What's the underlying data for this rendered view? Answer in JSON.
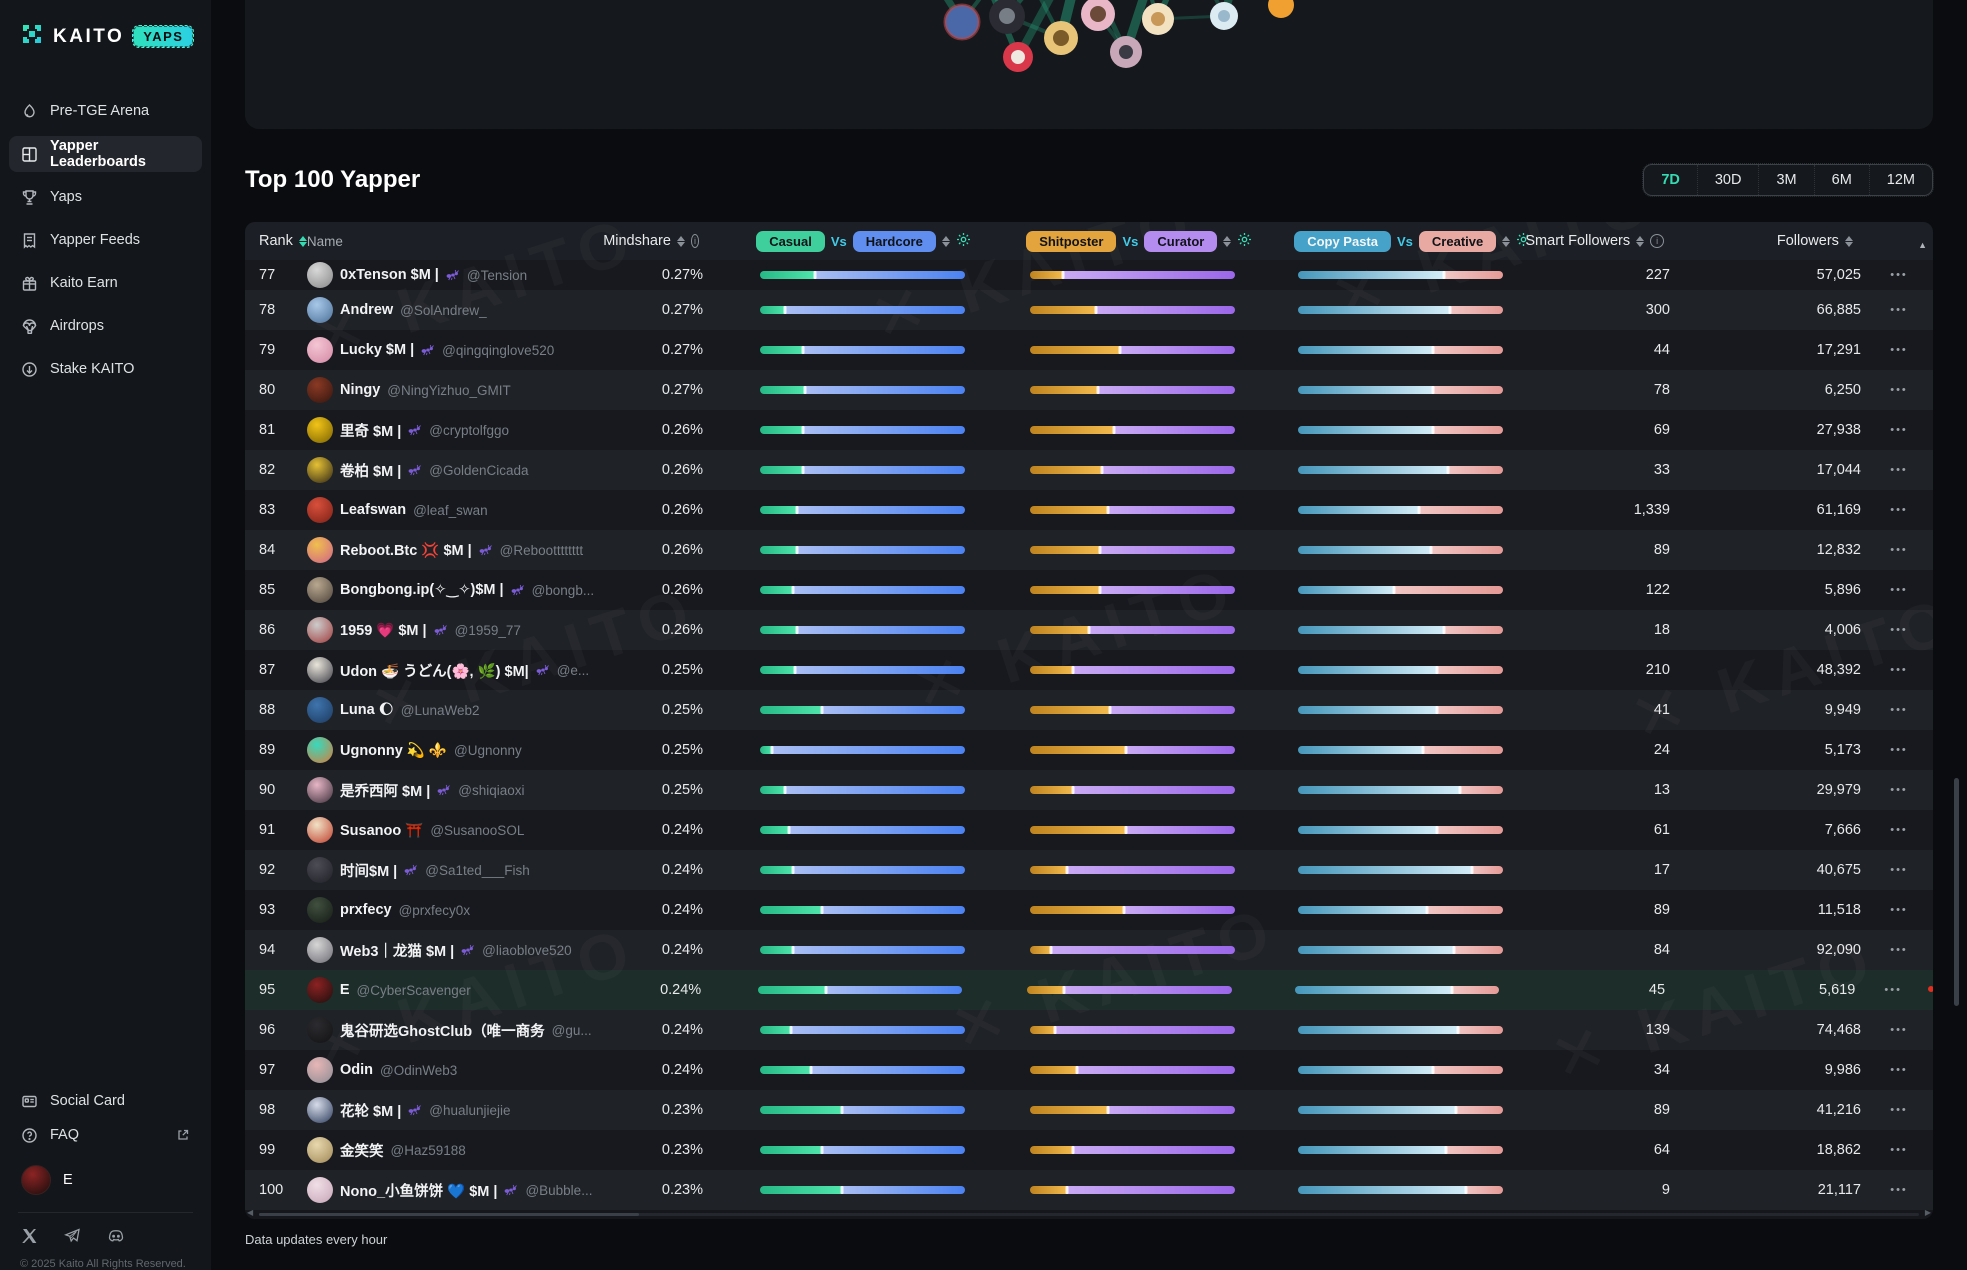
{
  "colors": {
    "accent": "#35dcb2",
    "vs": "#41cbe8",
    "red": "#e1301f",
    "pill-casual": "#3ecf9c",
    "pill-hardcore": "#5f8ef0",
    "pill-shitposter": "#e3a43d",
    "pill-curator": "#b48cf0",
    "pill-copypasta": "#46a2c8",
    "pill-creative": "#e9a9a3"
  },
  "watermark": {
    "text": "KAITO"
  },
  "sidebar": {
    "logo": {
      "brand": "KAITO",
      "badge": "YAPS"
    },
    "items": [
      {
        "label": "Pre-TGE Arena",
        "icon": "flame-icon",
        "active": false
      },
      {
        "label": "Yapper Leaderboards",
        "icon": "leaderboard-icon",
        "active": true
      },
      {
        "label": "Yaps",
        "icon": "trophy-icon",
        "active": false
      },
      {
        "label": "Yapper Feeds",
        "icon": "feeds-icon",
        "active": false
      },
      {
        "label": "Kaito Earn",
        "icon": "gift-icon",
        "active": false
      },
      {
        "label": "Airdrops",
        "icon": "airdrop-icon",
        "active": false
      },
      {
        "label": "Stake KAITO",
        "icon": "stake-icon",
        "active": false
      }
    ],
    "footer_links": [
      {
        "label": "Social Card",
        "icon": "card-icon"
      },
      {
        "label": "FAQ",
        "icon": "question-icon",
        "external": true
      }
    ],
    "user": {
      "name": "E"
    },
    "copyright": "© 2025 Kaito All Rights Reserved."
  },
  "main": {
    "title": "Top 100 Yapper",
    "time_ranges": [
      "7D",
      "30D",
      "3M",
      "6M",
      "12M"
    ],
    "active_range": "7D",
    "footnote": "Data updates every hour"
  },
  "table": {
    "headers": {
      "rank": "Rank",
      "name": "Name",
      "mindshare": "Mindshare",
      "smart_followers": "Smart Followers",
      "followers": "Followers"
    },
    "vs_headers": [
      {
        "left": "Casual",
        "vs": "Vs",
        "right": "Hardcore"
      },
      {
        "left": "Shitposter",
        "vs": "Vs",
        "right": "Curator"
      },
      {
        "left": "Copy Pasta",
        "vs": "Vs",
        "right": "Creative"
      }
    ],
    "menu_glyph": "•••",
    "rows": [
      {
        "rank": "77",
        "name": "0xTenson $M |",
        "ant": true,
        "handle": "@Tension",
        "mindshare": "0.27%",
        "casual_split": 0.27,
        "shitposter_split": 0.16,
        "copypasta_split": 0.71,
        "smart_followers": "227",
        "followers": "57,025",
        "highlighted": false,
        "avatar": [
          "#d8d8d8",
          "#888888"
        ]
      },
      {
        "rank": "78",
        "name": "Andrew",
        "ant": false,
        "handle": "@SolAndrew_",
        "mindshare": "0.27%",
        "casual_split": 0.12,
        "shitposter_split": 0.32,
        "copypasta_split": 0.74,
        "smart_followers": "300",
        "followers": "66,885",
        "highlighted": false,
        "avatar": [
          "#a8c8e8",
          "#4a6f98"
        ]
      },
      {
        "rank": "79",
        "name": "Lucky $M |",
        "ant": true,
        "handle": "@qingqinglove520",
        "mindshare": "0.27%",
        "casual_split": 0.21,
        "shitposter_split": 0.44,
        "copypasta_split": 0.66,
        "smart_followers": "44",
        "followers": "17,291",
        "highlighted": false,
        "avatar": [
          "#f4c6d4",
          "#d387a3"
        ]
      },
      {
        "rank": "80",
        "name": "Ningy",
        "ant": false,
        "handle": "@NingYizhuo_GMIT",
        "mindshare": "0.27%",
        "casual_split": 0.22,
        "shitposter_split": 0.33,
        "copypasta_split": 0.66,
        "smart_followers": "78",
        "followers": "6,250",
        "highlighted": false,
        "avatar": [
          "#8a3a24",
          "#33150f"
        ]
      },
      {
        "rank": "81",
        "name": "里奇 $M |",
        "ant": true,
        "handle": "@cryptolfggo",
        "mindshare": "0.26%",
        "casual_split": 0.21,
        "shitposter_split": 0.41,
        "copypasta_split": 0.66,
        "smart_followers": "69",
        "followers": "27,938",
        "highlighted": false,
        "avatar": [
          "#f2c418",
          "#7a6200"
        ]
      },
      {
        "rank": "82",
        "name": "卷柏 $M |",
        "ant": true,
        "handle": "@GoldenCicada",
        "mindshare": "0.26%",
        "casual_split": 0.21,
        "shitposter_split": 0.35,
        "copypasta_split": 0.73,
        "smart_followers": "33",
        "followers": "17,044",
        "highlighted": false,
        "avatar": [
          "#e5c135",
          "#2e2615"
        ]
      },
      {
        "rank": "83",
        "name": "Leafswan",
        "ant": false,
        "handle": "@leaf_swan",
        "mindshare": "0.26%",
        "casual_split": 0.18,
        "shitposter_split": 0.38,
        "copypasta_split": 0.59,
        "smart_followers": "1,339",
        "followers": "61,169",
        "highlighted": false,
        "avatar": [
          "#d8503c",
          "#7c1f15"
        ]
      },
      {
        "rank": "84",
        "name": "Reboot.Btc 💢 $M |",
        "ant": true,
        "handle": "@Rebootttttttt",
        "mindshare": "0.26%",
        "casual_split": 0.18,
        "shitposter_split": 0.34,
        "copypasta_split": 0.65,
        "smart_followers": "89",
        "followers": "12,832",
        "highlighted": false,
        "avatar": [
          "#f0bf4e",
          "#d06288"
        ]
      },
      {
        "rank": "85",
        "name": "Bongbong.ip(✧‿✧)$M |",
        "ant": true,
        "handle": "@bongb...",
        "mindshare": "0.26%",
        "casual_split": 0.16,
        "shitposter_split": 0.34,
        "copypasta_split": 0.47,
        "smart_followers": "122",
        "followers": "5,896",
        "highlighted": false,
        "avatar": [
          "#b9a890",
          "#4c423a"
        ]
      },
      {
        "rank": "86",
        "name": "1959 💗 $M |",
        "ant": true,
        "handle": "@1959_77",
        "mindshare": "0.26%",
        "casual_split": 0.18,
        "shitposter_split": 0.29,
        "copypasta_split": 0.71,
        "smart_followers": "18",
        "followers": "4,006",
        "highlighted": false,
        "avatar": [
          "#cccccc",
          "#a03a3a"
        ]
      },
      {
        "rank": "87",
        "name": "Udon 🍜 うどん(🌸, 🌿) $M|",
        "ant": true,
        "handle": "@e...",
        "mindshare": "0.25%",
        "casual_split": 0.17,
        "shitposter_split": 0.21,
        "copypasta_split": 0.68,
        "smart_followers": "210",
        "followers": "48,392",
        "highlighted": false,
        "avatar": [
          "#e9e5db",
          "#3c3c45"
        ]
      },
      {
        "rank": "88",
        "name": "Luna 🌔",
        "ant": false,
        "handle": "@LunaWeb2",
        "mindshare": "0.25%",
        "casual_split": 0.3,
        "shitposter_split": 0.39,
        "copypasta_split": 0.68,
        "smart_followers": "41",
        "followers": "9,949",
        "highlighted": false,
        "avatar": [
          "#3f74ad",
          "#1c3a60"
        ]
      },
      {
        "rank": "89",
        "name": "Ugnonny 💫 ⚜️",
        "ant": false,
        "handle": "@Ugnonny",
        "mindshare": "0.25%",
        "casual_split": 0.06,
        "shitposter_split": 0.47,
        "copypasta_split": 0.61,
        "smart_followers": "24",
        "followers": "5,173",
        "highlighted": false,
        "avatar": [
          "#38d9bd",
          "#d67b3b"
        ]
      },
      {
        "rank": "90",
        "name": "是乔西阿 $M |",
        "ant": true,
        "handle": "@shiqiaoxi",
        "mindshare": "0.25%",
        "casual_split": 0.12,
        "shitposter_split": 0.21,
        "copypasta_split": 0.79,
        "smart_followers": "13",
        "followers": "29,979",
        "highlighted": false,
        "avatar": [
          "#e7b6c6",
          "#3c2e39"
        ]
      },
      {
        "rank": "91",
        "name": "Susanoo ⛩️",
        "ant": false,
        "handle": "@SusanooSOL",
        "mindshare": "0.24%",
        "casual_split": 0.14,
        "shitposter_split": 0.47,
        "copypasta_split": 0.68,
        "smart_followers": "61",
        "followers": "7,666",
        "highlighted": false,
        "avatar": [
          "#f0e2c6",
          "#bf3c2a"
        ]
      },
      {
        "rank": "92",
        "name": "时间$M |",
        "ant": true,
        "handle": "@Sa1ted___Fish",
        "mindshare": "0.24%",
        "casual_split": 0.16,
        "shitposter_split": 0.18,
        "copypasta_split": 0.85,
        "smart_followers": "17",
        "followers": "40,675",
        "highlighted": false,
        "avatar": [
          "#4d4d56",
          "#1f1f26"
        ]
      },
      {
        "rank": "93",
        "name": "prxfecy",
        "ant": false,
        "handle": "@prxfecy0x",
        "mindshare": "0.24%",
        "casual_split": 0.3,
        "shitposter_split": 0.46,
        "copypasta_split": 0.63,
        "smart_followers": "89",
        "followers": "11,518",
        "highlighted": false,
        "avatar": [
          "#40503f",
          "#151a15"
        ]
      },
      {
        "rank": "94",
        "name": "Web3｜龙猫 $M |",
        "ant": true,
        "handle": "@liaoblove520",
        "mindshare": "0.24%",
        "casual_split": 0.16,
        "shitposter_split": 0.1,
        "copypasta_split": 0.76,
        "smart_followers": "84",
        "followers": "92,090",
        "highlighted": false,
        "avatar": [
          "#d6d6d6",
          "#6b6b74"
        ]
      },
      {
        "rank": "95",
        "name": "E",
        "ant": false,
        "handle": "@CyberScavenger",
        "mindshare": "0.24%",
        "casual_split": 0.33,
        "shitposter_split": 0.18,
        "copypasta_split": 0.77,
        "smart_followers": "45",
        "followers": "5,619",
        "highlighted": true,
        "avatar": [
          "#8c2222",
          "#1c0e0e"
        ]
      },
      {
        "rank": "96",
        "name": "鬼谷研选GhostClub（唯一商务",
        "ant": false,
        "handle": "@gu...",
        "mindshare": "0.24%",
        "casual_split": 0.15,
        "shitposter_split": 0.12,
        "copypasta_split": 0.78,
        "smart_followers": "139",
        "followers": "74,468",
        "highlighted": false,
        "avatar": [
          "#2c2c30",
          "#121214"
        ]
      },
      {
        "rank": "97",
        "name": "Odin",
        "ant": false,
        "handle": "@OdinWeb3",
        "mindshare": "0.24%",
        "casual_split": 0.25,
        "shitposter_split": 0.23,
        "copypasta_split": 0.66,
        "smart_followers": "34",
        "followers": "9,986",
        "highlighted": false,
        "avatar": [
          "#e7b6b6",
          "#8c8c94"
        ]
      },
      {
        "rank": "98",
        "name": "花轮 $M |",
        "ant": true,
        "handle": "@hualunjiejie",
        "mindshare": "0.23%",
        "casual_split": 0.4,
        "shitposter_split": 0.38,
        "copypasta_split": 0.77,
        "smart_followers": "89",
        "followers": "41,216",
        "highlighted": false,
        "avatar": [
          "#d6dbe8",
          "#2c3c5c"
        ]
      },
      {
        "rank": "99",
        "name": "金笑笑",
        "ant": false,
        "handle": "@Haz59188",
        "mindshare": "0.23%",
        "casual_split": 0.3,
        "shitposter_split": 0.21,
        "copypasta_split": 0.72,
        "smart_followers": "64",
        "followers": "18,862",
        "highlighted": false,
        "avatar": [
          "#e8d8ae",
          "#9f8756"
        ]
      },
      {
        "rank": "100",
        "name": "Nono_小鱼饼饼 💙 $M |",
        "ant": true,
        "handle": "@Bubble...",
        "mindshare": "0.23%",
        "casual_split": 0.4,
        "shitposter_split": 0.18,
        "copypasta_split": 0.82,
        "smart_followers": "9",
        "followers": "21,117",
        "highlighted": false,
        "avatar": [
          "#f0dfe6",
          "#c6a4b6"
        ]
      }
    ]
  }
}
